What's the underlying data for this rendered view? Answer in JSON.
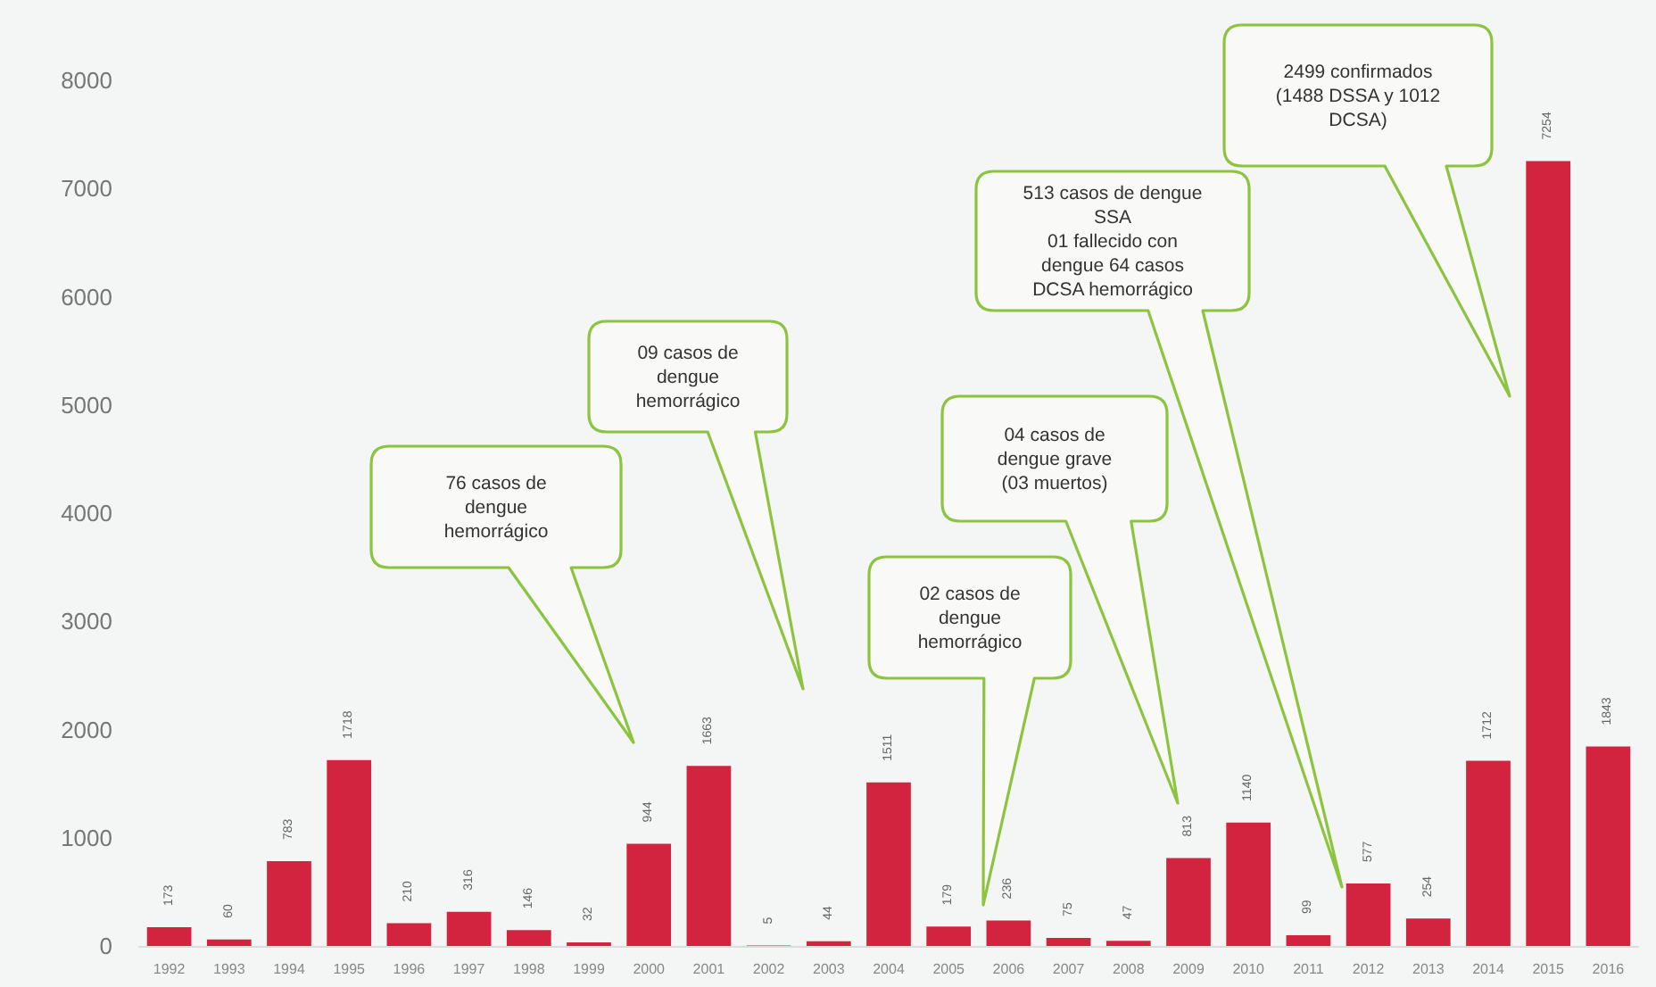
{
  "chart_data": {
    "type": "bar",
    "categories": [
      "1992",
      "1993",
      "1994",
      "1995",
      "1996",
      "1997",
      "1998",
      "1999",
      "2000",
      "2001",
      "2002",
      "2003",
      "2004",
      "2005",
      "2006",
      "2007",
      "2008",
      "2009",
      "2010",
      "2011",
      "2012",
      "2013",
      "2014",
      "2015",
      "2016"
    ],
    "values": [
      173,
      60,
      783,
      1718,
      210,
      316,
      146,
      32,
      944,
      1663,
      5,
      44,
      1511,
      179,
      236,
      75,
      47,
      813,
      1140,
      99,
      577,
      254,
      1712,
      7254,
      1843
    ],
    "color": "#d2233f",
    "ylim": [
      0,
      8000
    ],
    "yticks": [
      0,
      1000,
      2000,
      3000,
      4000,
      5000,
      6000,
      7000,
      8000
    ],
    "grid": false,
    "data_labels": true,
    "annotations": [
      "76 casos de\ndengue\nhemorrágico",
      "09 casos de\ndengue\nhemorrágico",
      "02 casos de\ndengue\nhemorrágico",
      "04 casos de\ndengue grave\n(03 muertos)",
      "513 casos de dengue\nSSA\n01 fallecido con\ndengue 64 casos\nDCSA hemorrágico",
      "2499 confirmados\n(1488 DSSA y 1012\nDCSA)"
    ]
  }
}
